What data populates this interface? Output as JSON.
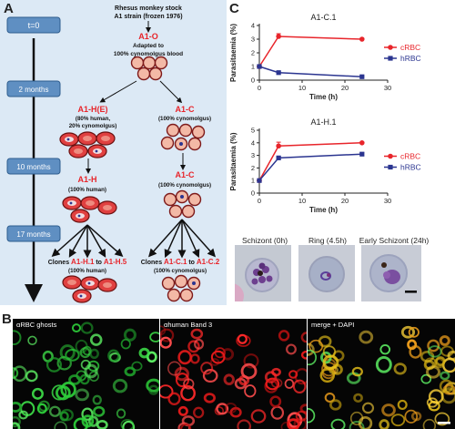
{
  "panels": {
    "a": "A",
    "b": "B",
    "c": "C"
  },
  "panel_a": {
    "timeline": [
      "t=0",
      "2 months",
      "10 months",
      "17 months"
    ],
    "stock_line1": "Rhesus monkey stock",
    "stock_line2": "A1 strain (frozen 1976)",
    "a1o": {
      "name": "A1-O",
      "l1": "Adapted to",
      "l2": "100% cynomolgus blood"
    },
    "a1he": {
      "name": "A1-H(E)",
      "l1": "(80% human,",
      "l2": "20% cynomolgus)"
    },
    "a1c_top": {
      "name": "A1-C",
      "l1": "(100% cynomolgus)"
    },
    "a1h": {
      "name": "A1-H",
      "l1": "(100% human)"
    },
    "a1c_mid": {
      "name": "A1-C",
      "l1": "(100% cynomolgus)"
    },
    "clones_h": {
      "prefix": "Clones",
      "c1": "A1-H.1",
      "to": "to",
      "c2": "A1-H.5",
      "l2": "(100% human)"
    },
    "clones_c": {
      "prefix": "Clones",
      "c1": "A1-C.1",
      "to": "to",
      "c2": "A1-C.2",
      "l2": "(100% cynomolgus)"
    }
  },
  "colors": {
    "cRBC": "#e8252b",
    "hRBC": "#2b3590",
    "accent_red": "#e8252b",
    "panel_bg": "#dce9f5",
    "timebox": "#5f8fc2"
  },
  "chart_data": [
    {
      "type": "line",
      "title": "A1-C.1",
      "xlabel": "Time (h)",
      "ylabel": "Parasitaemia (%)",
      "xlim": [
        0,
        30
      ],
      "ylim": [
        0,
        4
      ],
      "xticks": [
        0,
        10,
        20,
        30
      ],
      "yticks": [
        0,
        1,
        2,
        3,
        4
      ],
      "legend_position": "right",
      "series": [
        {
          "name": "cRBC",
          "color": "#e8252b",
          "marker": "circle",
          "x": [
            0,
            4.5,
            24
          ],
          "y": [
            1.0,
            3.2,
            3.0
          ],
          "err": [
            0,
            0.2,
            0.05
          ]
        },
        {
          "name": "hRBC",
          "color": "#2b3590",
          "marker": "square",
          "x": [
            0,
            4.5,
            24
          ],
          "y": [
            1.0,
            0.55,
            0.25
          ],
          "err": [
            0,
            0.05,
            0.03
          ]
        }
      ]
    },
    {
      "type": "line",
      "title": "A1-H.1",
      "xlabel": "Time (h)",
      "ylabel": "Parasitaemia (%)",
      "xlim": [
        0,
        30
      ],
      "ylim": [
        0,
        5
      ],
      "xticks": [
        0,
        10,
        20,
        30
      ],
      "yticks": [
        0,
        1,
        2,
        3,
        4,
        5
      ],
      "legend_position": "right",
      "series": [
        {
          "name": "cRBC",
          "color": "#e8252b",
          "marker": "circle",
          "x": [
            0,
            4.5,
            24
          ],
          "y": [
            1.0,
            3.75,
            4.0
          ],
          "err": [
            0,
            0.3,
            0.05
          ]
        },
        {
          "name": "hRBC",
          "color": "#2b3590",
          "marker": "square",
          "x": [
            0,
            4.5,
            24
          ],
          "y": [
            1.0,
            2.8,
            3.1
          ],
          "err": [
            0,
            0.05,
            0.1
          ]
        }
      ]
    }
  ],
  "panel_c_images": {
    "schizont": "Schizont (0h)",
    "ring": "Ring (4.5h)",
    "early": "Early Schizont (24h)"
  },
  "panel_b": {
    "label1": "αRBC ghosts",
    "label2": "αhuman Band 3",
    "label3": "merge + DAPI"
  }
}
